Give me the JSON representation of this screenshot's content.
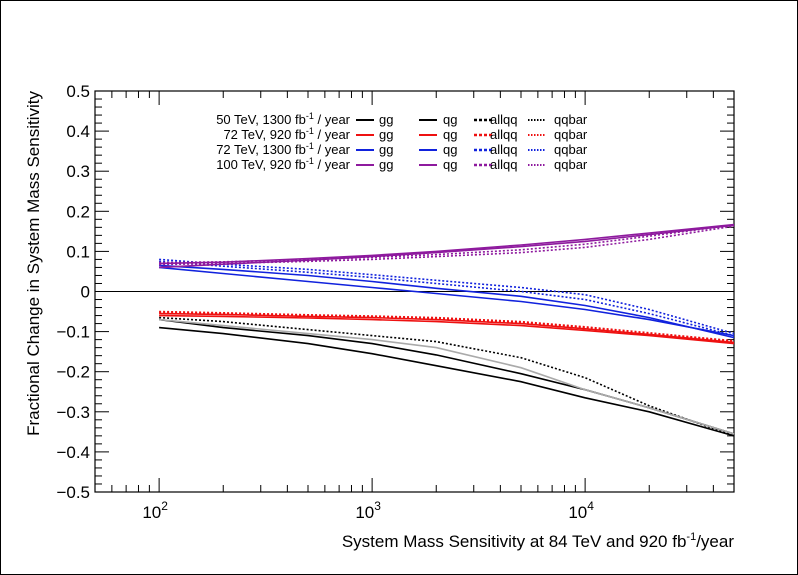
{
  "chart_data": {
    "type": "line",
    "title": "",
    "xlabel": "System Mass Sensitivity at 84 TeV and 920 fb-1/year",
    "xlabel_parts": {
      "main": "System Mass Sensitivity at 84 TeV and 920 fb",
      "sup": "-1",
      "tail": "/year"
    },
    "ylabel": "Fractional Change in System Mass Sensitivity",
    "xscale": "log",
    "xlim": [
      50,
      50000
    ],
    "ylim": [
      -0.5,
      0.5
    ],
    "xticks": [
      {
        "base": "10",
        "exp": "2"
      },
      {
        "base": "10",
        "exp": "3"
      },
      {
        "base": "10",
        "exp": "4"
      }
    ],
    "yticks": [
      "−0.5",
      "−0.4",
      "−0.3",
      "−0.2",
      "−0.1",
      "0",
      "0.1",
      "0.2",
      "0.3",
      "0.4",
      "0.5"
    ],
    "zero_line": true,
    "legend": {
      "placement": "top-left",
      "rows": [
        {
          "energy": "50 TeV,",
          "lumi": "1300 fb",
          "sup": "-1",
          "unit": "/ year",
          "color": "#000000",
          "entries": [
            "gg",
            "qg",
            "allqq",
            "qqbar"
          ]
        },
        {
          "energy": "72 TeV,",
          "lumi": "920 fb",
          "sup": "-1",
          "unit": "/ year",
          "color": "#ee1111",
          "entries": [
            "gg",
            "qg",
            "allqq",
            "qqbar"
          ]
        },
        {
          "energy": "72 TeV,",
          "lumi": "1300 fb",
          "sup": "-1",
          "unit": "/ year",
          "color": "#1122dd",
          "entries": [
            "gg",
            "qg",
            "allqq",
            "qqbar"
          ]
        },
        {
          "energy": "100 TeV,",
          "lumi": "920 fb",
          "sup": "-1",
          "unit": "/ year",
          "color": "#8e1a9e",
          "entries": [
            "gg",
            "qg",
            "allqq",
            "qqbar"
          ]
        }
      ]
    },
    "series": [
      {
        "name": "50 TeV 1300 gg",
        "color": "#000000",
        "style": "solid",
        "x": [
          100,
          200,
          500,
          1000,
          2000,
          5000,
          10000,
          20000,
          50000
        ],
        "y": [
          -0.09,
          -0.105,
          -0.13,
          -0.155,
          -0.185,
          -0.225,
          -0.265,
          -0.3,
          -0.36
        ]
      },
      {
        "name": "50 TeV 1300 qg",
        "color": "#000000",
        "style": "solid",
        "x": [
          100,
          200,
          500,
          1000,
          2000,
          5000,
          10000,
          20000,
          50000
        ],
        "y": [
          -0.07,
          -0.09,
          -0.11,
          -0.13,
          -0.158,
          -0.205,
          -0.245,
          -0.29,
          -0.355
        ]
      },
      {
        "name": "50 TeV 1300 allqq",
        "color": "#000000",
        "style": "dotted",
        "x": [
          100,
          200,
          500,
          1000,
          2000,
          5000,
          10000,
          20000,
          50000
        ],
        "y": [
          -0.065,
          -0.075,
          -0.095,
          -0.11,
          -0.125,
          -0.165,
          -0.215,
          -0.285,
          -0.36
        ]
      },
      {
        "name": "50 TeV 1300 qqbar",
        "color": "#aaaaaa",
        "style": "solid",
        "x": [
          100,
          200,
          500,
          1000,
          2000,
          5000,
          10000,
          20000,
          50000
        ],
        "y": [
          -0.07,
          -0.085,
          -0.105,
          -0.12,
          -0.14,
          -0.19,
          -0.245,
          -0.29,
          -0.355
        ]
      },
      {
        "name": "72 TeV 920 gg",
        "color": "#ee1111",
        "style": "solid",
        "x": [
          100,
          200,
          500,
          1000,
          2000,
          5000,
          10000,
          20000,
          50000
        ],
        "y": [
          -0.06,
          -0.062,
          -0.066,
          -0.07,
          -0.075,
          -0.085,
          -0.097,
          -0.11,
          -0.13
        ]
      },
      {
        "name": "72 TeV 920 qg",
        "color": "#ee1111",
        "style": "solid",
        "x": [
          100,
          200,
          500,
          1000,
          2000,
          5000,
          10000,
          20000,
          50000
        ],
        "y": [
          -0.055,
          -0.057,
          -0.062,
          -0.065,
          -0.07,
          -0.08,
          -0.093,
          -0.107,
          -0.127
        ]
      },
      {
        "name": "72 TeV 920 allqq",
        "color": "#ee1111",
        "style": "dotted",
        "x": [
          100,
          200,
          500,
          1000,
          2000,
          5000,
          10000,
          20000,
          50000
        ],
        "y": [
          -0.052,
          -0.055,
          -0.06,
          -0.063,
          -0.067,
          -0.077,
          -0.09,
          -0.105,
          -0.125
        ]
      },
      {
        "name": "72 TeV 920 qqbar",
        "color": "#ee1111",
        "style": "dotted",
        "x": [
          100,
          200,
          500,
          1000,
          2000,
          5000,
          10000,
          20000,
          50000
        ],
        "y": [
          -0.05,
          -0.053,
          -0.058,
          -0.061,
          -0.065,
          -0.075,
          -0.088,
          -0.103,
          -0.123
        ]
      },
      {
        "name": "72 TeV 1300 gg",
        "color": "#1122dd",
        "style": "solid",
        "x": [
          100,
          200,
          500,
          1000,
          2000,
          5000,
          10000,
          20000,
          50000
        ],
        "y": [
          0.06,
          0.045,
          0.025,
          0.01,
          -0.005,
          -0.025,
          -0.045,
          -0.07,
          -0.11
        ]
      },
      {
        "name": "72 TeV 1300 qg",
        "color": "#1122dd",
        "style": "solid",
        "x": [
          100,
          200,
          500,
          1000,
          2000,
          5000,
          10000,
          20000,
          50000
        ],
        "y": [
          0.065,
          0.055,
          0.04,
          0.025,
          0.008,
          -0.012,
          -0.035,
          -0.065,
          -0.115
        ]
      },
      {
        "name": "72 TeV 1300 allqq",
        "color": "#1122dd",
        "style": "dotted",
        "x": [
          100,
          200,
          500,
          1000,
          2000,
          5000,
          10000,
          20000,
          50000
        ],
        "y": [
          0.08,
          0.068,
          0.055,
          0.042,
          0.028,
          0.01,
          -0.008,
          -0.045,
          -0.105
        ]
      },
      {
        "name": "72 TeV 1300 qqbar",
        "color": "#1122dd",
        "style": "dotted",
        "x": [
          100,
          200,
          500,
          1000,
          2000,
          5000,
          10000,
          20000,
          50000
        ],
        "y": [
          0.075,
          0.063,
          0.048,
          0.035,
          0.02,
          0.0,
          -0.02,
          -0.055,
          -0.11
        ]
      },
      {
        "name": "100 TeV 920 gg",
        "color": "#8e1a9e",
        "style": "solid",
        "x": [
          100,
          200,
          500,
          1000,
          2000,
          5000,
          10000,
          20000,
          50000
        ],
        "y": [
          0.06,
          0.068,
          0.078,
          0.087,
          0.097,
          0.112,
          0.125,
          0.142,
          0.165
        ]
      },
      {
        "name": "100 TeV 920 qg",
        "color": "#8e1a9e",
        "style": "solid",
        "x": [
          100,
          200,
          500,
          1000,
          2000,
          5000,
          10000,
          20000,
          50000
        ],
        "y": [
          0.07,
          0.073,
          0.082,
          0.09,
          0.1,
          0.116,
          0.13,
          0.146,
          0.167
        ]
      },
      {
        "name": "100 TeV 920 allqq",
        "color": "#8e1a9e",
        "style": "dotted",
        "x": [
          100,
          200,
          500,
          1000,
          2000,
          5000,
          10000,
          20000,
          50000
        ],
        "y": [
          0.067,
          0.07,
          0.075,
          0.08,
          0.087,
          0.097,
          0.11,
          0.13,
          0.163
        ]
      },
      {
        "name": "100 TeV 920 qqbar",
        "color": "#8e1a9e",
        "style": "dotted",
        "x": [
          100,
          200,
          500,
          1000,
          2000,
          5000,
          10000,
          20000,
          50000
        ],
        "y": [
          0.072,
          0.074,
          0.079,
          0.085,
          0.092,
          0.104,
          0.118,
          0.138,
          0.166
        ]
      }
    ]
  }
}
